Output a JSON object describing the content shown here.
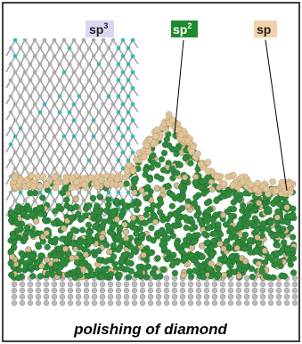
{
  "labels": [
    {
      "base": "sp",
      "sup": "3"
    },
    {
      "base": "sp",
      "sup": "2"
    },
    {
      "base": "sp"
    }
  ],
  "caption": "polishing of diamond"
}
